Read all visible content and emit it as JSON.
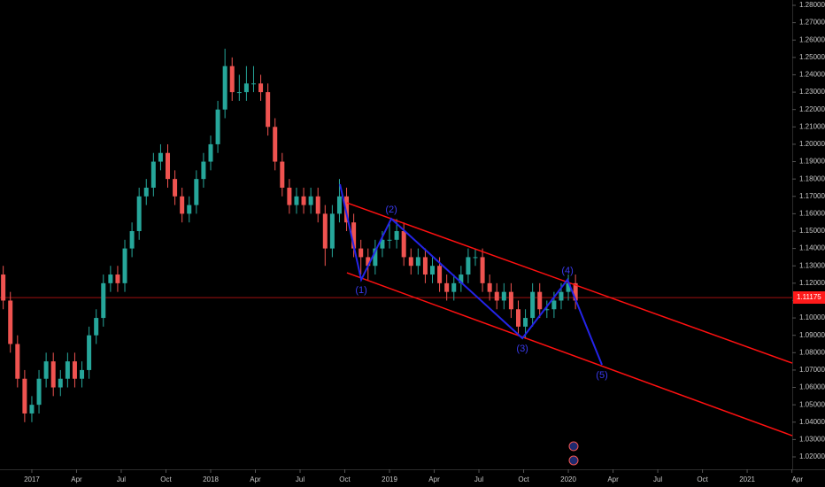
{
  "chart_data": {
    "type": "candlestick",
    "up_color": "#26a69a",
    "down_color": "#ef5350",
    "xlim": [
      2016.822,
      2021.252
    ],
    "ylim": [
      1.01286,
      1.28306
    ],
    "xticks": [
      {
        "value": 2017,
        "label": "2017"
      },
      {
        "value": 2017.25,
        "label": "Apr"
      },
      {
        "value": 2017.5,
        "label": "Jul"
      },
      {
        "value": 2017.75,
        "label": "Oct"
      },
      {
        "value": 2018,
        "label": "2018"
      },
      {
        "value": 2018.25,
        "label": "Apr"
      },
      {
        "value": 2018.5,
        "label": "Jul"
      },
      {
        "value": 2018.75,
        "label": "Oct"
      },
      {
        "value": 2019,
        "label": "2019"
      },
      {
        "value": 2019.25,
        "label": "Apr"
      },
      {
        "value": 2019.5,
        "label": "Jul"
      },
      {
        "value": 2019.75,
        "label": "Oct"
      },
      {
        "value": 2020,
        "label": "2020"
      },
      {
        "value": 2020.25,
        "label": "Apr"
      },
      {
        "value": 2020.5,
        "label": "Jul"
      },
      {
        "value": 2020.75,
        "label": "Oct"
      },
      {
        "value": 2021,
        "label": "2021"
      },
      {
        "value": 2021.25,
        "label": "Apr"
      }
    ],
    "yticks": [
      {
        "value": 1.02,
        "label": "1.02000"
      },
      {
        "value": 1.03,
        "label": "1.03000"
      },
      {
        "value": 1.04,
        "label": "1.04000"
      },
      {
        "value": 1.05,
        "label": "1.05000"
      },
      {
        "value": 1.06,
        "label": "1.06000"
      },
      {
        "value": 1.07,
        "label": "1.07000"
      },
      {
        "value": 1.08,
        "label": "1.08000"
      },
      {
        "value": 1.09,
        "label": "1.09000"
      },
      {
        "value": 1.1,
        "label": "1.10000"
      },
      {
        "value": 1.11,
        "label": "1.11000"
      },
      {
        "value": 1.12,
        "label": "1.12000"
      },
      {
        "value": 1.13,
        "label": "1.13000"
      },
      {
        "value": 1.14,
        "label": "1.14000"
      },
      {
        "value": 1.15,
        "label": "1.15000"
      },
      {
        "value": 1.16,
        "label": "1.16000"
      },
      {
        "value": 1.17,
        "label": "1.17000"
      },
      {
        "value": 1.18,
        "label": "1.18000"
      },
      {
        "value": 1.19,
        "label": "1.19000"
      },
      {
        "value": 1.2,
        "label": "1.20000"
      },
      {
        "value": 1.21,
        "label": "1.21000"
      },
      {
        "value": 1.22,
        "label": "1.22000"
      },
      {
        "value": 1.23,
        "label": "1.23000"
      },
      {
        "value": 1.24,
        "label": "1.24000"
      },
      {
        "value": 1.25,
        "label": "1.25000"
      },
      {
        "value": 1.26,
        "label": "1.26000"
      },
      {
        "value": 1.27,
        "label": "1.27000"
      },
      {
        "value": 1.28,
        "label": "1.28000"
      }
    ],
    "price_line": 1.11175,
    "price_line_color": "#ff1a1a",
    "x": [
      2016.84,
      2016.88,
      2016.92,
      2016.96,
      2017.0,
      2017.04,
      2017.08,
      2017.12,
      2017.16,
      2017.2,
      2017.24,
      2017.28,
      2017.32,
      2017.36,
      2017.4,
      2017.44,
      2017.48,
      2017.52,
      2017.56,
      2017.6,
      2017.64,
      2017.68,
      2017.72,
      2017.76,
      2017.8,
      2017.84,
      2017.88,
      2017.92,
      2017.96,
      2018.0,
      2018.04,
      2018.08,
      2018.12,
      2018.16,
      2018.2,
      2018.24,
      2018.28,
      2018.32,
      2018.36,
      2018.4,
      2018.44,
      2018.48,
      2018.52,
      2018.56,
      2018.6,
      2018.64,
      2018.68,
      2018.72,
      2018.76,
      2018.8,
      2018.84,
      2018.88,
      2018.92,
      2018.96,
      2019.0,
      2019.04,
      2019.08,
      2019.12,
      2019.16,
      2019.2,
      2019.24,
      2019.28,
      2019.32,
      2019.36,
      2019.4,
      2019.44,
      2019.48,
      2019.52,
      2019.56,
      2019.6,
      2019.64,
      2019.68,
      2019.72,
      2019.76,
      2019.8,
      2019.84,
      2019.88,
      2019.92,
      2019.96,
      2020.0,
      2020.04
    ],
    "open": [
      1.125,
      1.11,
      1.085,
      1.065,
      1.045,
      1.05,
      1.065,
      1.075,
      1.06,
      1.065,
      1.075,
      1.065,
      1.07,
      1.09,
      1.1,
      1.12,
      1.125,
      1.12,
      1.14,
      1.15,
      1.17,
      1.175,
      1.19,
      1.195,
      1.18,
      1.17,
      1.16,
      1.165,
      1.18,
      1.19,
      1.2,
      1.22,
      1.245,
      1.23,
      1.23,
      1.235,
      1.235,
      1.23,
      1.21,
      1.19,
      1.175,
      1.165,
      1.17,
      1.165,
      1.17,
      1.16,
      1.14,
      1.16,
      1.17,
      1.155,
      1.14,
      1.135,
      1.13,
      1.14,
      1.145,
      1.145,
      1.15,
      1.135,
      1.13,
      1.135,
      1.125,
      1.13,
      1.12,
      1.115,
      1.12,
      1.125,
      1.135,
      1.135,
      1.12,
      1.115,
      1.11,
      1.115,
      1.105,
      1.095,
      1.1,
      1.115,
      1.105,
      1.105,
      1.11,
      1.115,
      1.12
    ],
    "high": [
      1.13,
      1.115,
      1.09,
      1.07,
      1.055,
      1.07,
      1.08,
      1.08,
      1.07,
      1.08,
      1.08,
      1.075,
      1.095,
      1.105,
      1.125,
      1.13,
      1.13,
      1.145,
      1.155,
      1.175,
      1.18,
      1.195,
      1.2,
      1.2,
      1.185,
      1.175,
      1.17,
      1.185,
      1.195,
      1.205,
      1.225,
      1.255,
      1.25,
      1.24,
      1.245,
      1.245,
      1.24,
      1.235,
      1.215,
      1.195,
      1.18,
      1.175,
      1.175,
      1.175,
      1.175,
      1.165,
      1.165,
      1.18,
      1.175,
      1.16,
      1.145,
      1.14,
      1.145,
      1.15,
      1.155,
      1.157,
      1.155,
      1.14,
      1.14,
      1.14,
      1.135,
      1.135,
      1.125,
      1.125,
      1.13,
      1.14,
      1.14,
      1.14,
      1.125,
      1.12,
      1.12,
      1.12,
      1.11,
      1.105,
      1.12,
      1.12,
      1.11,
      1.115,
      1.12,
      1.125,
      1.125
    ],
    "low": [
      1.105,
      1.08,
      1.06,
      1.04,
      1.04,
      1.045,
      1.06,
      1.055,
      1.055,
      1.06,
      1.06,
      1.06,
      1.065,
      1.085,
      1.095,
      1.115,
      1.115,
      1.115,
      1.135,
      1.145,
      1.165,
      1.17,
      1.185,
      1.175,
      1.165,
      1.155,
      1.155,
      1.16,
      1.175,
      1.185,
      1.195,
      1.215,
      1.225,
      1.225,
      1.225,
      1.23,
      1.225,
      1.205,
      1.185,
      1.17,
      1.16,
      1.16,
      1.16,
      1.16,
      1.155,
      1.13,
      1.135,
      1.155,
      1.15,
      1.135,
      1.125,
      1.122,
      1.125,
      1.135,
      1.14,
      1.14,
      1.13,
      1.125,
      1.125,
      1.12,
      1.12,
      1.115,
      1.11,
      1.11,
      1.115,
      1.12,
      1.13,
      1.115,
      1.11,
      1.105,
      1.105,
      1.1,
      1.09,
      1.088,
      1.095,
      1.1,
      1.1,
      1.1,
      1.105,
      1.11,
      1.105
    ],
    "close": [
      1.11,
      1.085,
      1.065,
      1.045,
      1.05,
      1.065,
      1.075,
      1.06,
      1.065,
      1.075,
      1.065,
      1.07,
      1.09,
      1.1,
      1.12,
      1.125,
      1.12,
      1.14,
      1.15,
      1.17,
      1.175,
      1.19,
      1.195,
      1.18,
      1.17,
      1.16,
      1.165,
      1.18,
      1.19,
      1.2,
      1.22,
      1.245,
      1.23,
      1.23,
      1.235,
      1.235,
      1.23,
      1.21,
      1.19,
      1.175,
      1.165,
      1.17,
      1.165,
      1.17,
      1.16,
      1.14,
      1.16,
      1.17,
      1.155,
      1.14,
      1.135,
      1.13,
      1.14,
      1.145,
      1.145,
      1.15,
      1.135,
      1.13,
      1.135,
      1.125,
      1.13,
      1.12,
      1.115,
      1.12,
      1.125,
      1.135,
      1.135,
      1.12,
      1.115,
      1.11,
      1.115,
      1.105,
      1.095,
      1.1,
      1.115,
      1.105,
      1.105,
      1.11,
      1.115,
      1.12,
      1.11
    ],
    "channels": [
      {
        "color": "#ff1010",
        "x": [
          2018.762,
          2021.252
        ],
        "y": [
          1.1663,
          1.074
        ]
      },
      {
        "color": "#ff1010",
        "x": [
          2018.762,
          2021.252
        ],
        "y": [
          1.126,
          1.0322
        ]
      }
    ],
    "wave": {
      "color": "#2424e8",
      "x": [
        2018.723,
        2018.842,
        2019.01,
        2019.743,
        2019.995,
        2020.188
      ],
      "y": [
        1.177,
        1.122,
        1.1571,
        1.0883,
        1.122,
        1.073
      ],
      "labels": [
        null,
        "(1)",
        "(2)",
        "(3)",
        "(4)",
        "(5)"
      ]
    }
  }
}
